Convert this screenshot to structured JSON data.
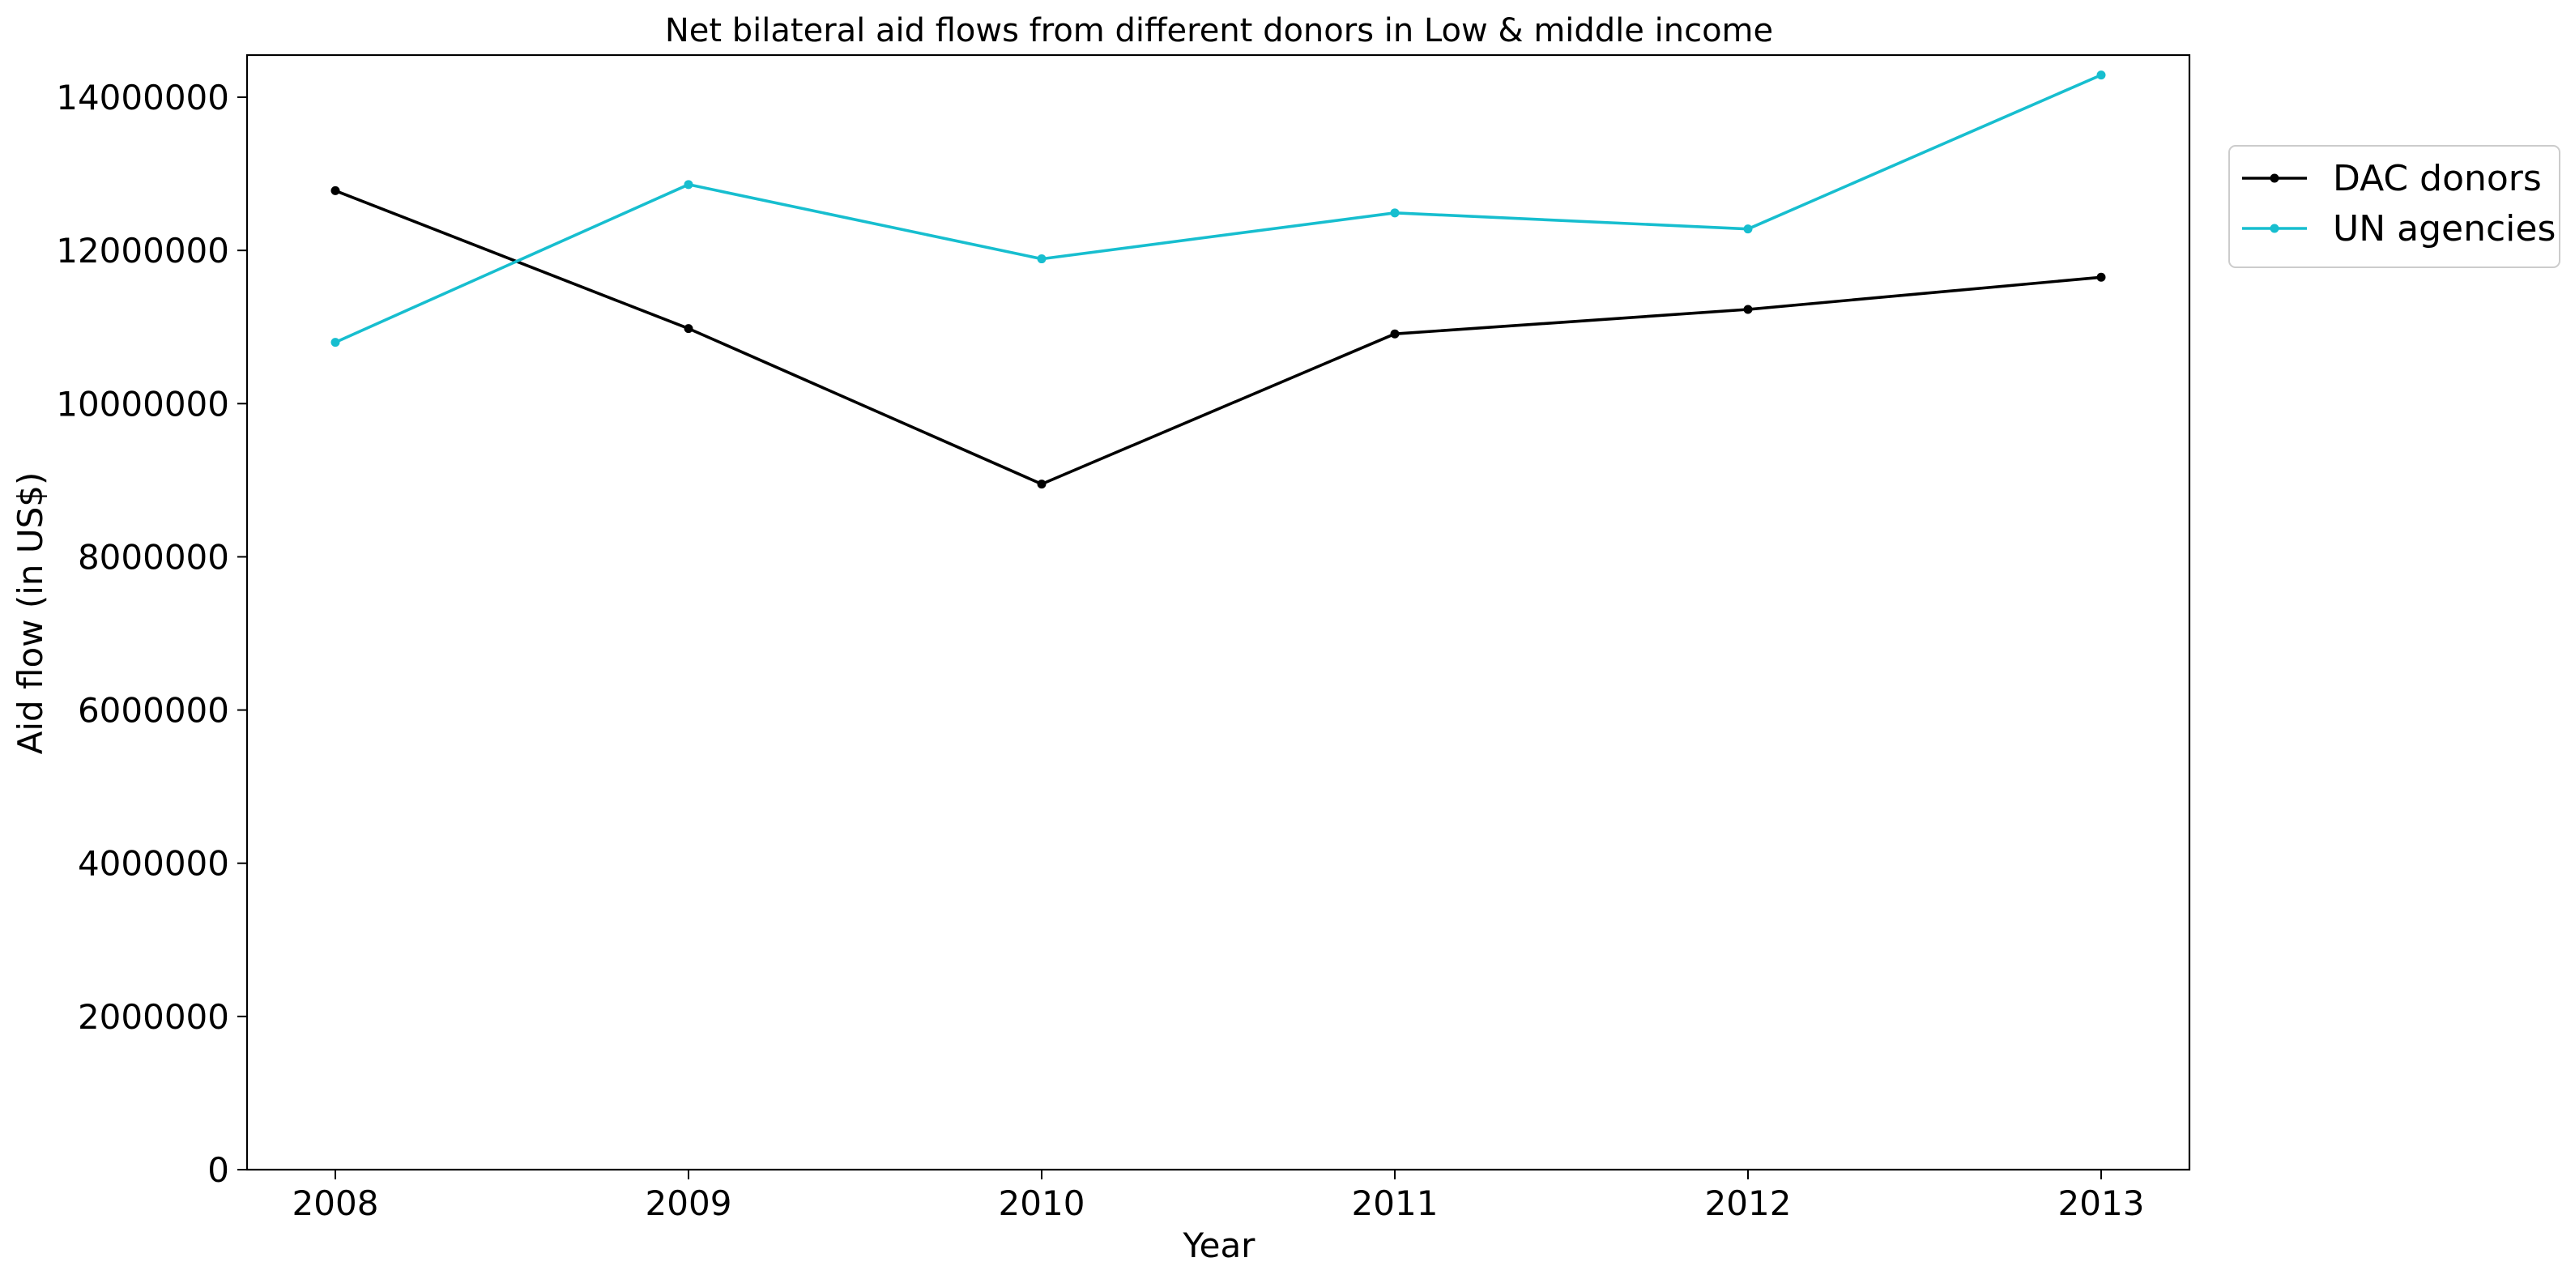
{
  "chart_data": {
    "type": "line",
    "title": "Net bilateral aid flows from different donors in Low & middle income",
    "xlabel": "Year",
    "ylabel": "Aid flow (in US$)",
    "x": [
      "2008",
      "2009",
      "2010",
      "2011",
      "2012",
      "2013"
    ],
    "xlim": [
      2007.75,
      2013.25
    ],
    "ylim": [
      0,
      14550000
    ],
    "yticks": [
      0,
      2000000,
      4000000,
      6000000,
      8000000,
      10000000,
      12000000,
      14000000
    ],
    "ytick_labels": [
      "0",
      "2000000",
      "4000000",
      "6000000",
      "8000000",
      "10000000",
      "12000000",
      "14000000"
    ],
    "grid": false,
    "legend_position": "outside-right-top",
    "series": [
      {
        "name": "DAC donors",
        "color": "#000000",
        "values": [
          12780000,
          10980000,
          8950000,
          10910000,
          11230000,
          11650000
        ]
      },
      {
        "name": "UN agencies",
        "color": "#17becf",
        "values": [
          10800000,
          12860000,
          11890000,
          12490000,
          12280000,
          14290000
        ]
      }
    ]
  }
}
